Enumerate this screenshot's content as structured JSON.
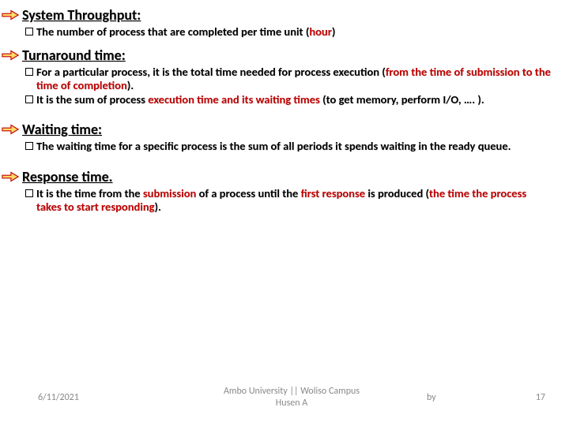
{
  "colors": {
    "accent": "#c00000",
    "text": "#000000",
    "footer": "#888888",
    "arrow_fill": "#ffd966",
    "arrow_stroke": "#c00000"
  },
  "typography": {
    "heading_fontsize": 18,
    "body_fontsize": 14.5,
    "footer_fontsize": 12,
    "font_family": "Calibri"
  },
  "sections": [
    {
      "heading": "System Throughput:",
      "items": [
        {
          "pre": "The number of process that are completed per time unit (",
          "accent": "hour",
          "post": ")"
        }
      ]
    },
    {
      "heading": "Turnaround time:",
      "items": [
        {
          "pre": "For a particular process, it is the total time needed for process execution (",
          "accent": "from the time of submission to the time of completion",
          "post": ")."
        },
        {
          "pre": "It is the sum of process ",
          "accent": "execution time and its waiting times",
          "post": " (to get memory, perform I/O, …. )."
        }
      ]
    },
    {
      "heading": "Waiting time:",
      "items": [
        {
          "pre": "The waiting time for a specific process is the sum of all periods it spends waiting in the ready queue.",
          "accent": "",
          "post": ""
        }
      ]
    },
    {
      "heading": "Response time.",
      "items": [
        {
          "pre": "It is the time from the ",
          "accent": "submission",
          "mid": " of a process until the ",
          "accent2": "first response",
          "mid2": " is produced (",
          "accent3": "the time the process takes to start responding",
          "post": ")."
        }
      ]
    }
  ],
  "footer": {
    "date": "6/11/2021",
    "center_line1": "Ambo University || Woliso Campus",
    "center_line2": "Husen A",
    "by": "by",
    "page": "17"
  }
}
